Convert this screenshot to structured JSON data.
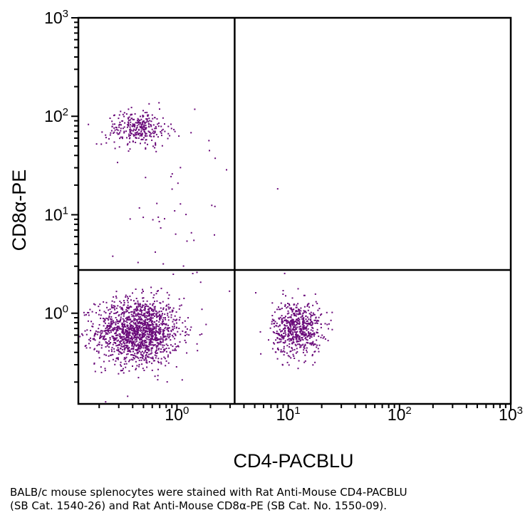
{
  "chart_data": {
    "type": "scatter",
    "xlabel": "CD4-PACBLU",
    "ylabel": "CD8α-PE",
    "x_scale": "log",
    "y_scale": "log",
    "xlim": [
      0.13,
      1000
    ],
    "ylim": [
      0.12,
      1000
    ],
    "x_ticks": [
      {
        "value": 1,
        "base": "10",
        "exp": "0"
      },
      {
        "value": 10,
        "base": "10",
        "exp": "1"
      },
      {
        "value": 100,
        "base": "10",
        "exp": "2"
      },
      {
        "value": 1000,
        "base": "10",
        "exp": "3"
      }
    ],
    "y_ticks": [
      {
        "value": 1,
        "base": "10",
        "exp": "0"
      },
      {
        "value": 10,
        "base": "10",
        "exp": "1"
      },
      {
        "value": 100,
        "base": "10",
        "exp": "2"
      },
      {
        "value": 1000,
        "base": "10",
        "exp": "3"
      }
    ],
    "gates": {
      "x": 3.3,
      "y": 2.75
    },
    "point_color": "#6a0a7a",
    "grid": false,
    "clusters": [
      {
        "population": "CD4-CD8-",
        "n": 1500,
        "x_center": 0.45,
        "y_center": 0.65,
        "x_log_sd": 0.19,
        "y_log_sd": 0.17
      },
      {
        "population": "CD4+CD8-",
        "n": 600,
        "x_center": 12,
        "y_center": 0.7,
        "x_log_sd": 0.11,
        "y_log_sd": 0.14
      },
      {
        "population": "CD4-CD8+",
        "n": 300,
        "x_center": 0.45,
        "y_center": 75,
        "x_log_sd": 0.14,
        "y_log_sd": 0.09
      },
      {
        "population": "scatter",
        "n": 45,
        "x_center": 1.2,
        "y_center": 10,
        "x_log_sd": 0.35,
        "y_log_sd": 0.45
      }
    ]
  },
  "caption": {
    "line1": "BALB/c mouse splenocytes were stained with Rat Anti-Mouse CD4-PACBLU",
    "line2": "(SB Cat. 1540-26) and Rat Anti-Mouse CD8α-PE (SB Cat. No. 1550-09)."
  }
}
